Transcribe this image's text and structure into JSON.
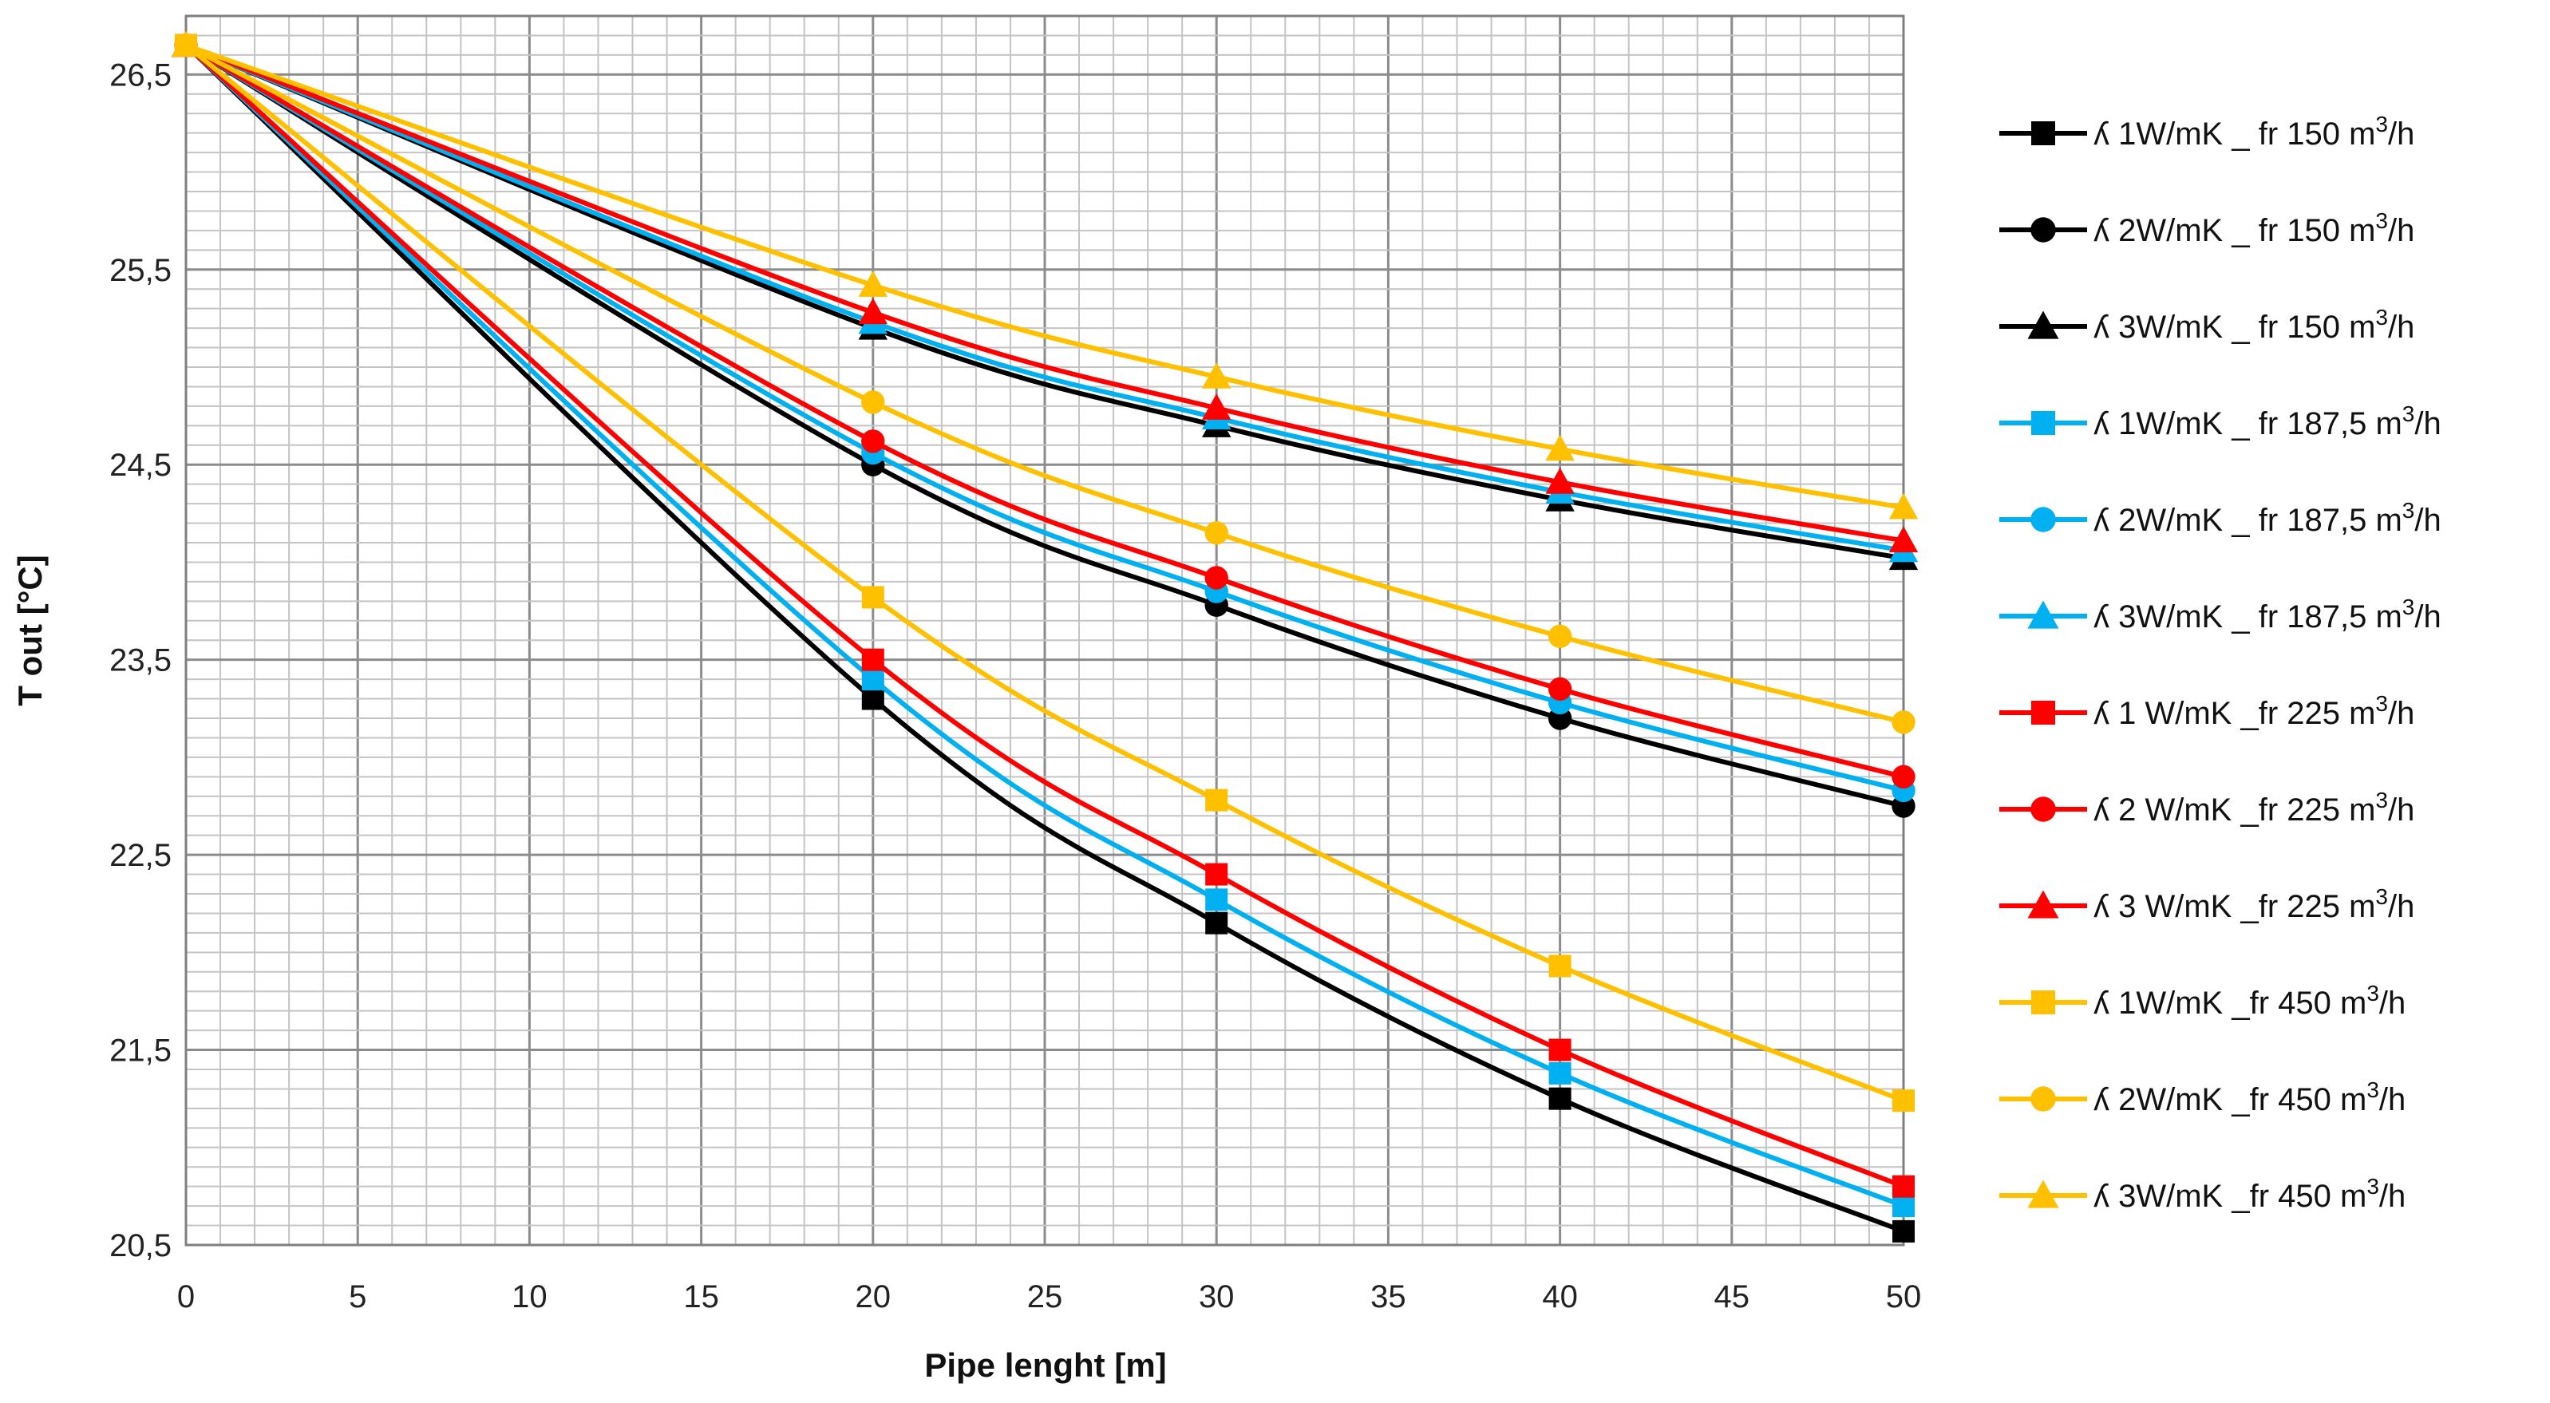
{
  "chart_data": {
    "type": "line",
    "title": "",
    "xlabel": "Pipe lenght [m]",
    "ylabel": "T out [°C]",
    "xlim": [
      0,
      50
    ],
    "ylim": [
      20.5,
      26.8
    ],
    "x_ticks": [
      "0",
      "5",
      "10",
      "15",
      "20",
      "25",
      "30",
      "35",
      "40",
      "45",
      "50"
    ],
    "y_ticks": [
      "20,5",
      "21,5",
      "22,5",
      "23,5",
      "24,5",
      "25,5",
      "26,5"
    ],
    "y_tick_values": [
      20.5,
      21.5,
      22.5,
      23.5,
      24.5,
      25.5,
      26.5
    ],
    "grid": true,
    "legend_position": "right",
    "x": [
      0,
      20,
      30,
      40,
      50
    ],
    "series": [
      {
        "name_prefix": "ʎ  1W/mK _ fr 150 m",
        "name_sup": "3",
        "name_suffix": "/h",
        "color": "#000000",
        "marker": "square",
        "values": [
          26.65,
          23.3,
          22.15,
          21.25,
          20.57
        ]
      },
      {
        "name_prefix": "ʎ  2W/mK _ fr 150 m",
        "name_sup": "3",
        "name_suffix": "/h",
        "color": "#000000",
        "marker": "circle",
        "values": [
          26.65,
          24.5,
          23.78,
          23.2,
          22.75
        ]
      },
      {
        "name_prefix": "ʎ  3W/mK _ fr 150 m",
        "name_sup": "3",
        "name_suffix": "/h",
        "color": "#000000",
        "marker": "triangle",
        "values": [
          26.65,
          25.2,
          24.7,
          24.32,
          24.02
        ]
      },
      {
        "name_prefix": "ʎ  1W/mK _ fr 187,5 m",
        "name_sup": "3",
        "name_suffix": "/h",
        "color": "#00B0F0",
        "marker": "square",
        "values": [
          26.65,
          23.4,
          22.27,
          21.38,
          20.7
        ]
      },
      {
        "name_prefix": "ʎ  2W/mK _ fr 187,5 m",
        "name_sup": "3",
        "name_suffix": "/h",
        "color": "#00B0F0",
        "marker": "circle",
        "values": [
          26.65,
          24.56,
          23.85,
          23.28,
          22.83
        ]
      },
      {
        "name_prefix": "ʎ  3W/mK _ fr 187,5 m",
        "name_sup": "3",
        "name_suffix": "/h",
        "color": "#00B0F0",
        "marker": "triangle",
        "values": [
          26.65,
          25.23,
          24.74,
          24.36,
          24.06
        ]
      },
      {
        "name_prefix": "ʎ 1 W/mK _fr  225 m",
        "name_sup": "3",
        "name_suffix": "/h",
        "color": "#FF0000",
        "marker": "square",
        "values": [
          26.65,
          23.5,
          22.4,
          21.5,
          20.8
        ]
      },
      {
        "name_prefix": "ʎ 2 W/mK _fr  225 m",
        "name_sup": "3",
        "name_suffix": "/h",
        "color": "#FF0000",
        "marker": "circle",
        "values": [
          26.65,
          24.62,
          23.92,
          23.35,
          22.9
        ]
      },
      {
        "name_prefix": "ʎ 3 W/mK _fr  225 m",
        "name_sup": "3",
        "name_suffix": "/h",
        "color": "#FF0000",
        "marker": "triangle",
        "values": [
          26.65,
          25.28,
          24.79,
          24.41,
          24.11
        ]
      },
      {
        "name_prefix": "ʎ  1W/mK _fr  450 m",
        "name_sup": "3",
        "name_suffix": "/h",
        "color": "#FFC000",
        "marker": "square",
        "values": [
          26.65,
          23.82,
          22.78,
          21.93,
          21.24
        ]
      },
      {
        "name_prefix": "ʎ  2W/mK _fr  450 m",
        "name_sup": "3",
        "name_suffix": "/h",
        "color": "#FFC000",
        "marker": "circle",
        "values": [
          26.65,
          24.82,
          24.15,
          23.62,
          23.18
        ]
      },
      {
        "name_prefix": "ʎ  3W/mK _fr  450 m",
        "name_sup": "3",
        "name_suffix": "/h",
        "color": "#FFC000",
        "marker": "triangle",
        "values": [
          26.65,
          25.42,
          24.95,
          24.58,
          24.28
        ]
      }
    ]
  }
}
